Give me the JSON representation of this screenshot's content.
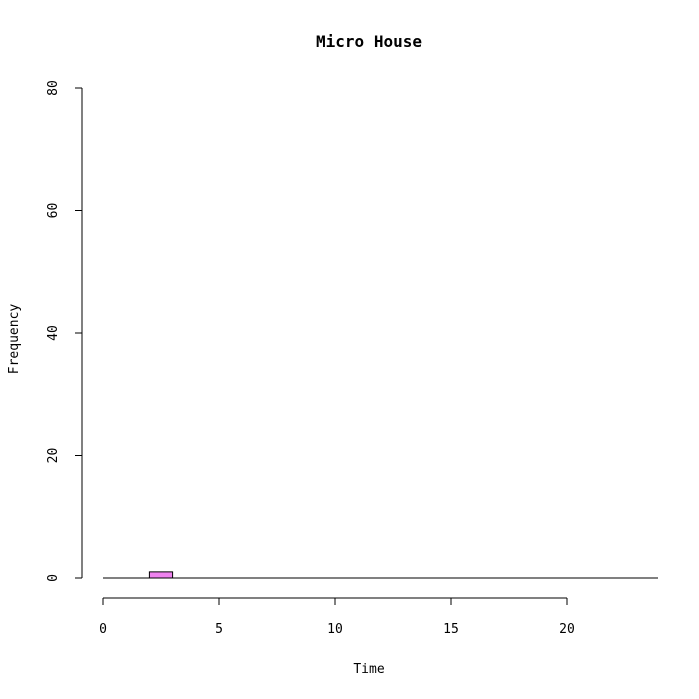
{
  "chart_data": {
    "type": "bar",
    "subtype": "histogram",
    "title": "Micro House",
    "xlabel": "Time",
    "ylabel": "Frequency",
    "xlim": [
      0,
      24
    ],
    "ylim": [
      0,
      80
    ],
    "xticks": [
      0,
      5,
      10,
      15,
      20
    ],
    "yticks": [
      0,
      20,
      40,
      60,
      80
    ],
    "bin_width": 1,
    "bins": [
      {
        "start": 2,
        "end": 3,
        "count": 1
      }
    ],
    "bar_color": "#ee82ee",
    "grid": false
  }
}
